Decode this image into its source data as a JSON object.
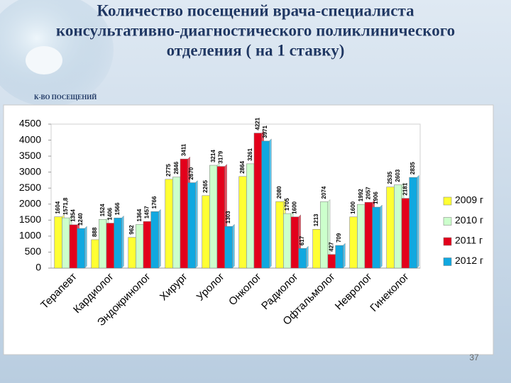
{
  "chart_data": {
    "type": "bar",
    "title": [
      "Количество посещений  врача-специалиста",
      "консультативно-диагностического поликлинического",
      "отделения ( на 1 ставку)"
    ],
    "y_label": "К-ВО ПОСЕЩЕНИЙ",
    "page_number": "37",
    "categories": [
      "Терапевт",
      "Кардиолог",
      "Эндокринолог",
      "Хирург",
      "Уролог",
      "Онколог",
      "Радиолог",
      "Офтальмолог",
      "Невролог",
      "Гинеколог"
    ],
    "series": [
      {
        "name": "2009 г",
        "color": "#ffff33",
        "values": [
          1604,
          888,
          962,
          2775,
          2265,
          2864,
          2080,
          1213,
          1600,
          2535
        ]
      },
      {
        "name": "2010 г",
        "color": "#ccffcc",
        "values": [
          1571.8,
          1524,
          1364,
          2846,
          3214,
          3261,
          1705,
          2074,
          1992,
          2603
        ],
        "value_labels": [
          "1571,8",
          "1524",
          "1364",
          "2846",
          "3214",
          "3261",
          "1705",
          "2074",
          "1992",
          "2603"
        ]
      },
      {
        "name": "2011 г",
        "color": "#e3001b",
        "values": [
          1354,
          1406,
          1457,
          3411,
          3179,
          4221,
          1600,
          427,
          2057,
          2181
        ]
      },
      {
        "name": "2012 г",
        "color": "#10a8e0",
        "values": [
          1240,
          1566,
          1766,
          2670,
          1303,
          3971,
          617,
          709,
          1906,
          2835
        ]
      }
    ],
    "ylim": [
      0,
      4500
    ],
    "yticks": [
      0,
      500,
      1000,
      1500,
      2000,
      2500,
      3000,
      3500,
      4000,
      4500
    ],
    "legend": "right"
  }
}
